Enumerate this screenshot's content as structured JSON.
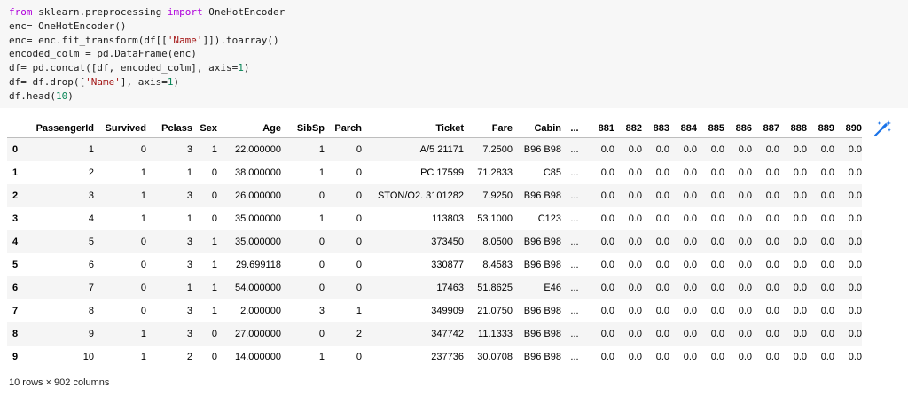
{
  "code": {
    "line1": {
      "from": "from",
      "mod": " sklearn.preprocessing ",
      "import": "import",
      "name": " OneHotEncoder"
    },
    "line2": "enc= OneHotEncoder()",
    "line3": {
      "a": "enc= enc.fit_transform(df[[",
      "s": "'Name'",
      "b": "]]).toarray()"
    },
    "line4": "encoded_colm = pd.DataFrame(enc)",
    "line5": {
      "a": "df= pd.concat([df, encoded_colm], axis=",
      "n": "1",
      "b": ")"
    },
    "line6": {
      "a": "df= df.drop([",
      "s": "'Name'",
      "b": "], axis=",
      "n": "1",
      "c": ")"
    },
    "line7": {
      "a": "df.head(",
      "n": "10",
      "b": ")"
    }
  },
  "table": {
    "columns": [
      "PassengerId",
      "Survived",
      "Pclass",
      "Sex",
      "Age",
      "SibSp",
      "Parch",
      "Ticket",
      "Fare",
      "Cabin",
      "...",
      "881",
      "882",
      "883",
      "884",
      "885",
      "886",
      "887",
      "888",
      "889",
      "890"
    ],
    "rows": [
      [
        "0",
        "1",
        "0",
        "3",
        "1",
        "22.000000",
        "1",
        "0",
        "A/5 21171",
        "7.2500",
        "B96 B98",
        "...",
        "0.0",
        "0.0",
        "0.0",
        "0.0",
        "0.0",
        "0.0",
        "0.0",
        "0.0",
        "0.0",
        "0.0"
      ],
      [
        "1",
        "2",
        "1",
        "1",
        "0",
        "38.000000",
        "1",
        "0",
        "PC 17599",
        "71.2833",
        "C85",
        "...",
        "0.0",
        "0.0",
        "0.0",
        "0.0",
        "0.0",
        "0.0",
        "0.0",
        "0.0",
        "0.0",
        "0.0"
      ],
      [
        "2",
        "3",
        "1",
        "3",
        "0",
        "26.000000",
        "0",
        "0",
        "STON/O2. 3101282",
        "7.9250",
        "B96 B98",
        "...",
        "0.0",
        "0.0",
        "0.0",
        "0.0",
        "0.0",
        "0.0",
        "0.0",
        "0.0",
        "0.0",
        "0.0"
      ],
      [
        "3",
        "4",
        "1",
        "1",
        "0",
        "35.000000",
        "1",
        "0",
        "113803",
        "53.1000",
        "C123",
        "...",
        "0.0",
        "0.0",
        "0.0",
        "0.0",
        "0.0",
        "0.0",
        "0.0",
        "0.0",
        "0.0",
        "0.0"
      ],
      [
        "4",
        "5",
        "0",
        "3",
        "1",
        "35.000000",
        "0",
        "0",
        "373450",
        "8.0500",
        "B96 B98",
        "...",
        "0.0",
        "0.0",
        "0.0",
        "0.0",
        "0.0",
        "0.0",
        "0.0",
        "0.0",
        "0.0",
        "0.0"
      ],
      [
        "5",
        "6",
        "0",
        "3",
        "1",
        "29.699118",
        "0",
        "0",
        "330877",
        "8.4583",
        "B96 B98",
        "...",
        "0.0",
        "0.0",
        "0.0",
        "0.0",
        "0.0",
        "0.0",
        "0.0",
        "0.0",
        "0.0",
        "0.0"
      ],
      [
        "6",
        "7",
        "0",
        "1",
        "1",
        "54.000000",
        "0",
        "0",
        "17463",
        "51.8625",
        "E46",
        "...",
        "0.0",
        "0.0",
        "0.0",
        "0.0",
        "0.0",
        "0.0",
        "0.0",
        "0.0",
        "0.0",
        "0.0"
      ],
      [
        "7",
        "8",
        "0",
        "3",
        "1",
        "2.000000",
        "3",
        "1",
        "349909",
        "21.0750",
        "B96 B98",
        "...",
        "0.0",
        "0.0",
        "0.0",
        "0.0",
        "0.0",
        "0.0",
        "0.0",
        "0.0",
        "0.0",
        "0.0"
      ],
      [
        "8",
        "9",
        "1",
        "3",
        "0",
        "27.000000",
        "0",
        "2",
        "347742",
        "11.1333",
        "B96 B98",
        "...",
        "0.0",
        "0.0",
        "0.0",
        "0.0",
        "0.0",
        "0.0",
        "0.0",
        "0.0",
        "0.0",
        "0.0"
      ],
      [
        "9",
        "10",
        "1",
        "2",
        "0",
        "14.000000",
        "1",
        "0",
        "237736",
        "30.0708",
        "B96 B98",
        "...",
        "0.0",
        "0.0",
        "0.0",
        "0.0",
        "0.0",
        "0.0",
        "0.0",
        "0.0",
        "0.0",
        "0.0"
      ]
    ]
  },
  "summary": "10 rows × 902 columns",
  "icons": {
    "magic": "magic-wand-icon"
  },
  "colors": {
    "keyword": "#af00db",
    "string": "#a31515",
    "number": "#098658",
    "accent": "#1a73e8"
  }
}
